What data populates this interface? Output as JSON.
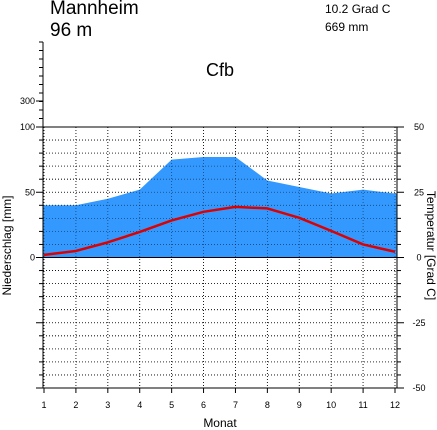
{
  "header": {
    "station": "Mannheim",
    "elevation": "96 m",
    "mean_temperature": "10.2 Grad C",
    "annual_precipitation": "669 mm",
    "climate_class": "Cfb"
  },
  "chart_data": {
    "type": "area",
    "xlabel": "Monat",
    "ylabel_left": "Niederschlag [mm]",
    "ylabel_right": "Temperatur [Grad C]",
    "x": [
      1,
      2,
      3,
      4,
      5,
      6,
      7,
      8,
      9,
      10,
      11,
      12
    ],
    "x_ticks": [
      "1",
      "2",
      "3",
      "4",
      "5",
      "6",
      "7",
      "8",
      "9",
      "10",
      "11",
      "12"
    ],
    "left_ticks": [
      "300",
      "100",
      "50",
      "0"
    ],
    "right_ticks": [
      "50",
      "25",
      "0",
      "-25",
      "-50"
    ],
    "left_ylim": [
      -100,
      100
    ],
    "right_ylim": [
      -50,
      50
    ],
    "grid": true,
    "series": [
      {
        "name": "Niederschlag",
        "unit": "mm",
        "kind": "area",
        "color": "#3399ff",
        "values": [
          40,
          40,
          45,
          52,
          75,
          77,
          77,
          59,
          54,
          49,
          52,
          49
        ]
      },
      {
        "name": "Temperatur",
        "unit": "Grad C",
        "kind": "line",
        "color": "#dd0000",
        "values": [
          1.0,
          2.5,
          5.8,
          9.8,
          14.2,
          17.5,
          19.4,
          18.8,
          15.2,
          10.2,
          5.0,
          2.2
        ]
      }
    ]
  }
}
